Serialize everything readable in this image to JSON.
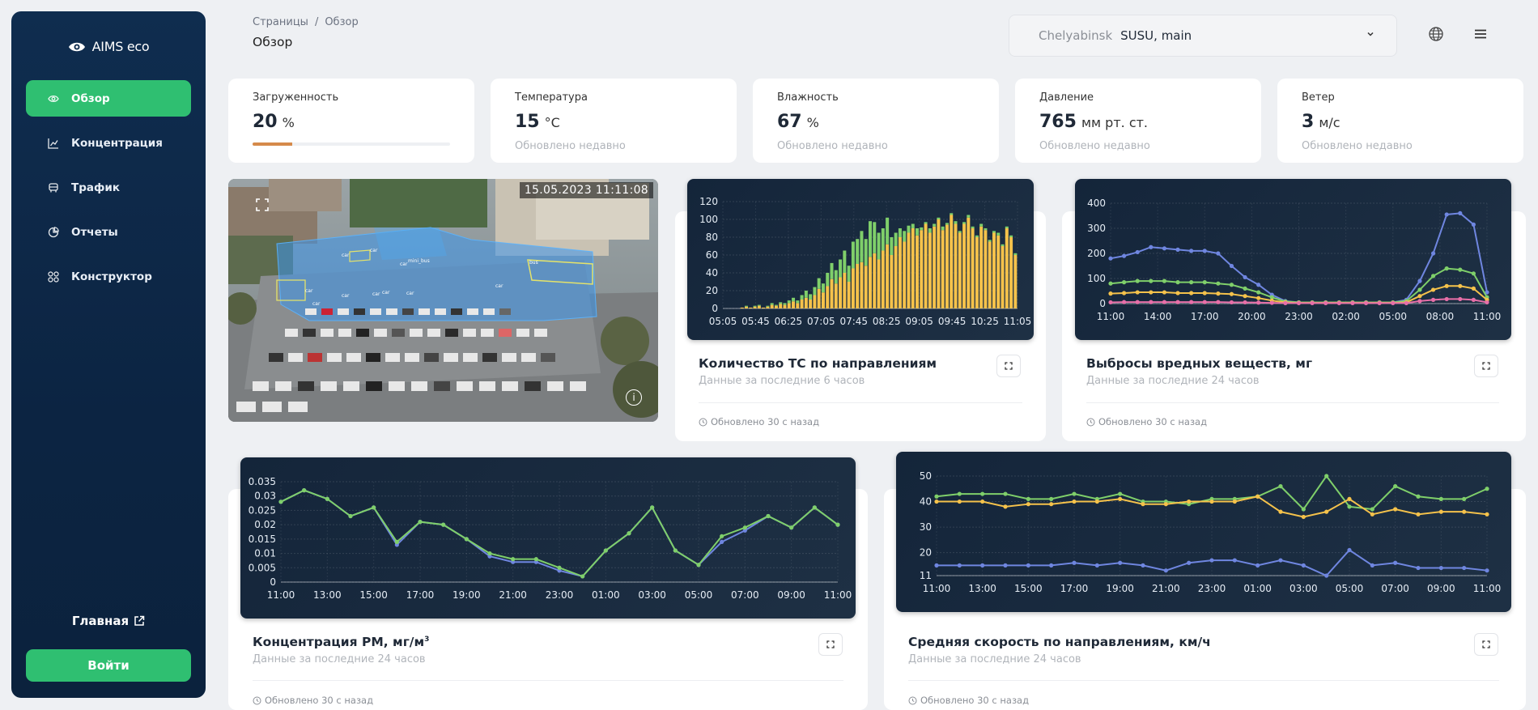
{
  "sidebar": {
    "logo": "AIMS eco",
    "items": [
      {
        "label": "Обзор",
        "icon": "eye-icon",
        "active": true
      },
      {
        "label": "Концентрация",
        "icon": "chart-icon"
      },
      {
        "label": "Трафик",
        "icon": "car-icon"
      },
      {
        "label": "Отчеты",
        "icon": "pie-icon"
      },
      {
        "label": "Конструктор",
        "icon": "grid-icon"
      }
    ],
    "home_label": "Главная",
    "login_label": "Войти"
  },
  "header": {
    "breadcrumb": [
      "Страницы",
      "/",
      "Обзор"
    ],
    "title": "Обзор",
    "city": "Chelyabinsk",
    "station": "SUSU, main"
  },
  "stats": [
    {
      "label": "Загруженность",
      "value": "20",
      "unit": "%",
      "progress": 0.2
    },
    {
      "label": "Температура",
      "value": "15",
      "unit": "°C",
      "sub": "Обновлено недавно"
    },
    {
      "label": "Влажность",
      "value": "67",
      "unit": "%",
      "sub": "Обновлено недавно"
    },
    {
      "label": "Давление",
      "value": "765",
      "unit": "мм рт. ст.",
      "sub": "Обновлено недавно"
    },
    {
      "label": "Ветер",
      "value": "3",
      "unit": "м/с",
      "sub": "Обновлено недавно"
    }
  ],
  "camera": {
    "timestamp": "15.05.2023  11:11:08",
    "labels": [
      "car",
      "car",
      "car",
      "mini_bus",
      "car",
      "bus",
      "car",
      "car",
      "car",
      "car",
      "car",
      "car"
    ]
  },
  "cards": {
    "traffic": {
      "title": "Количество ТС по направлениям",
      "sub": "Данные за последние 6 часов",
      "updated": "Обновлено 30 с назад"
    },
    "emissions": {
      "title": "Выбросы вредных веществ, мг",
      "sub": "Данные за последние 24 часов",
      "updated": "Обновлено 30 с назад"
    },
    "pm": {
      "title": "Концентрация PM, мг/м",
      "sup": "3",
      "sub": "Данные за последние 24 часов",
      "updated": "Обновлено 30 с назад"
    },
    "speed": {
      "title": "Средняя скорость по направлениям, км/ч",
      "sub": "Данные за последние 24 часов",
      "updated": "Обновлено 30 с назад"
    }
  },
  "colors": {
    "accent": "#2fbf71",
    "sidebar": "#0f2d4f",
    "progress": "#d58a4a",
    "yellow": "#f5c24b",
    "green": "#7fcf6a",
    "blue": "#6f86e0",
    "pink": "#e76fa8"
  },
  "chart_data": [
    {
      "id": "traffic",
      "type": "bar",
      "stacked": true,
      "ylim": [
        0,
        120
      ],
      "yticks": [
        0,
        20,
        40,
        60,
        80,
        100,
        120
      ],
      "xticks": [
        "05:05",
        "05:45",
        "06:25",
        "07:05",
        "07:45",
        "08:25",
        "09:05",
        "09:45",
        "10:25",
        "11:05"
      ],
      "series": [
        {
          "color": "#f5c24b",
          "values": [
            0,
            0,
            0,
            0,
            1,
            2,
            1,
            2,
            3,
            1,
            2,
            4,
            3,
            5,
            4,
            6,
            8,
            6,
            10,
            12,
            10,
            15,
            22,
            18,
            25,
            33,
            28,
            35,
            40,
            30,
            45,
            50,
            52,
            48,
            58,
            62,
            55,
            65,
            72,
            60,
            70,
            80,
            75,
            85,
            90,
            82,
            88,
            95,
            85,
            92,
            100,
            88,
            94,
            105,
            95,
            85,
            95,
            102,
            90,
            80,
            92,
            88,
            75,
            85,
            82,
            70,
            90,
            80,
            60
          ]
        },
        {
          "color": "#7fcf6a",
          "values": [
            0,
            0,
            0,
            0,
            0,
            1,
            0,
            1,
            1,
            0,
            1,
            2,
            1,
            2,
            2,
            3,
            4,
            3,
            5,
            8,
            6,
            9,
            12,
            10,
            15,
            18,
            15,
            20,
            25,
            18,
            30,
            28,
            35,
            30,
            40,
            35,
            30,
            25,
            30,
            20,
            15,
            10,
            12,
            8,
            5,
            8,
            3,
            2,
            5,
            3,
            2,
            4,
            2,
            2,
            3,
            2,
            2,
            3,
            2,
            2,
            3,
            2,
            2,
            2,
            3,
            2,
            2,
            2,
            2
          ]
        }
      ]
    },
    {
      "id": "emissions",
      "type": "line",
      "ylim": [
        0,
        400
      ],
      "yticks": [
        0,
        100,
        200,
        300,
        400
      ],
      "xticks": [
        "11:00",
        "14:00",
        "17:00",
        "20:00",
        "23:00",
        "02:00",
        "05:00",
        "08:00",
        "11:00"
      ],
      "series": [
        {
          "color": "#6f86e0",
          "values": [
            180,
            190,
            205,
            225,
            220,
            215,
            210,
            210,
            200,
            150,
            105,
            75,
            35,
            10,
            5,
            5,
            5,
            5,
            5,
            5,
            5,
            5,
            15,
            90,
            200,
            355,
            360,
            315,
            45
          ]
        },
        {
          "color": "#7fcf6a",
          "values": [
            80,
            85,
            90,
            90,
            90,
            85,
            85,
            85,
            80,
            75,
            60,
            45,
            25,
            8,
            5,
            5,
            5,
            5,
            5,
            5,
            5,
            5,
            10,
            55,
            110,
            140,
            135,
            120,
            25
          ]
        },
        {
          "color": "#f5c24b",
          "values": [
            40,
            42,
            45,
            45,
            45,
            42,
            42,
            42,
            40,
            38,
            30,
            22,
            12,
            5,
            3,
            3,
            3,
            3,
            3,
            3,
            3,
            3,
            5,
            30,
            55,
            70,
            70,
            60,
            15
          ]
        },
        {
          "color": "#e76fa8",
          "values": [
            5,
            6,
            6,
            6,
            6,
            6,
            6,
            6,
            6,
            5,
            5,
            4,
            3,
            2,
            2,
            2,
            2,
            2,
            2,
            2,
            2,
            2,
            2,
            10,
            15,
            18,
            18,
            15,
            5
          ]
        }
      ]
    },
    {
      "id": "pm",
      "type": "line",
      "ylim": [
        0,
        0.035
      ],
      "yticks": [
        0,
        0.005,
        0.01,
        0.015,
        0.02,
        0.025,
        0.03,
        0.035
      ],
      "xticks": [
        "11:00",
        "13:00",
        "15:00",
        "17:00",
        "19:00",
        "21:00",
        "23:00",
        "01:00",
        "03:00",
        "05:00",
        "07:00",
        "09:00",
        "11:00"
      ],
      "series": [
        {
          "color": "#6f86e0",
          "values": [
            0.028,
            0.032,
            0.029,
            0.023,
            0.026,
            0.013,
            0.021,
            0.02,
            0.015,
            0.009,
            0.007,
            0.007,
            0.004,
            0.002,
            0.011,
            0.017,
            0.026,
            0.011,
            0.006,
            0.014,
            0.018,
            0.023,
            0.019,
            0.026,
            0.02
          ]
        },
        {
          "color": "#7fcf6a",
          "values": [
            0.028,
            0.032,
            0.029,
            0.023,
            0.026,
            0.014,
            0.021,
            0.02,
            0.015,
            0.01,
            0.008,
            0.008,
            0.005,
            0.002,
            0.011,
            0.017,
            0.026,
            0.011,
            0.006,
            0.016,
            0.019,
            0.023,
            0.019,
            0.026,
            0.02
          ]
        }
      ]
    },
    {
      "id": "speed",
      "type": "line",
      "ylim": [
        11,
        50
      ],
      "yticks": [
        11,
        20,
        30,
        40,
        50
      ],
      "xticks": [
        "11:00",
        "13:00",
        "15:00",
        "17:00",
        "19:00",
        "21:00",
        "23:00",
        "01:00",
        "03:00",
        "05:00",
        "07:00",
        "09:00",
        "11:00"
      ],
      "series": [
        {
          "color": "#7fcf6a",
          "values": [
            42,
            43,
            43,
            43,
            41,
            41,
            43,
            41,
            43,
            40,
            40,
            39,
            41,
            41,
            42,
            46,
            37,
            50,
            38,
            37,
            46,
            42,
            41,
            41,
            45
          ]
        },
        {
          "color": "#f5c24b",
          "values": [
            40,
            40,
            40,
            38,
            39,
            39,
            40,
            40,
            41,
            39,
            39,
            40,
            40,
            40,
            42,
            36,
            34,
            36,
            41,
            35,
            37,
            35,
            36,
            36,
            35
          ]
        },
        {
          "color": "#6f86e0",
          "values": [
            15,
            15,
            15,
            15,
            15,
            15,
            16,
            15,
            16,
            15,
            13,
            16,
            17,
            17,
            15,
            17,
            15,
            11,
            21,
            15,
            16,
            14,
            14,
            14,
            13
          ]
        }
      ]
    }
  ]
}
